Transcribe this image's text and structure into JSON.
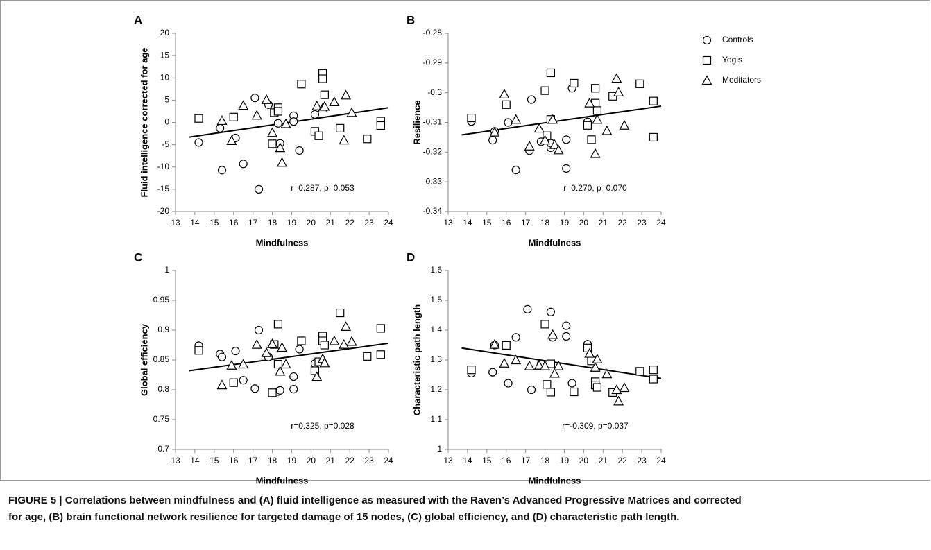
{
  "chart_data": [
    {
      "type": "scatter",
      "panel": "A",
      "ylabel": "Fluid intelligence corrected for age",
      "xlabel": "Mindfulness",
      "annotation": "r=0.287, p=0.053",
      "xlim": [
        13,
        24
      ],
      "xticks": [
        13,
        14,
        15,
        16,
        17,
        18,
        19,
        20,
        21,
        22,
        23,
        24
      ],
      "ylim": [
        -20,
        20
      ],
      "yticks": [
        -20,
        -15,
        -10,
        -5,
        0,
        5,
        10,
        15,
        20
      ],
      "series": [
        {
          "marker": "circle",
          "color": "#000000",
          "x": [
            14.2,
            15.3,
            15.4,
            16.1,
            16.5,
            17.1,
            17.3,
            17.8,
            18.3,
            18.4,
            19.1,
            19.1,
            19.4,
            20.2
          ],
          "y": [
            -4.5,
            -1.3,
            -10.7,
            -3.5,
            -9.3,
            5.5,
            -15,
            4,
            -0.2,
            -4.7,
            1.5,
            0.2,
            -6.3,
            1.8
          ]
        },
        {
          "marker": "square",
          "color": "#000000",
          "x": [
            14.2,
            16.0,
            18.0,
            18.1,
            18.3,
            18.3,
            19.5,
            20.2,
            20.4,
            20.6,
            20.6,
            20.7,
            21.5,
            22.9,
            23.6,
            23.6
          ],
          "y": [
            0.9,
            1.2,
            -4.8,
            2.2,
            3.3,
            2.5,
            8.6,
            -2.0,
            -3,
            11,
            9.8,
            6.2,
            -1.3,
            -3.7,
            0.3,
            -0.7
          ]
        },
        {
          "marker": "triangle",
          "color": "#000000",
          "x": [
            15.4,
            15.9,
            16.5,
            17.2,
            17.7,
            18.0,
            18.4,
            18.5,
            18.7,
            20.3,
            20.6,
            20.7,
            21.2,
            21.7,
            21.8,
            22.1
          ],
          "y": [
            0.4,
            -4.1,
            3.8,
            1.6,
            5.1,
            -2.3,
            -5.7,
            -9,
            -0.3,
            3.7,
            3.2,
            3.6,
            4.6,
            -4,
            6.1,
            2.2
          ]
        }
      ],
      "trendline": {
        "color": "#000000",
        "x": [
          13.7,
          24
        ],
        "y": [
          -3.3,
          3.3
        ]
      }
    },
    {
      "type": "scatter",
      "panel": "B",
      "ylabel": "Resilience",
      "xlabel": "Mindfulness",
      "annotation": "r=0.270, p=0.070",
      "legend": "right",
      "xlim": [
        13,
        24
      ],
      "xticks": [
        13,
        14,
        15,
        16,
        17,
        18,
        19,
        20,
        21,
        22,
        23,
        24
      ],
      "ylim": [
        -0.34,
        -0.28
      ],
      "yticks": [
        -0.34,
        -0.33,
        -0.32,
        -0.31,
        -0.3,
        -0.29,
        -0.28
      ],
      "series": [
        {
          "name": "Controls",
          "marker": "circle",
          "color": "#000000",
          "x": [
            14.2,
            15.3,
            15.4,
            16.1,
            16.5,
            17.2,
            17.3,
            17.8,
            18.3,
            18.3,
            19.1,
            19.1,
            19.4,
            20.2
          ],
          "y": [
            -0.3097,
            -0.316,
            -0.313,
            -0.31,
            -0.326,
            -0.3195,
            -0.3023,
            -0.3165,
            -0.3185,
            -0.317,
            -0.3255,
            -0.3158,
            -0.2985,
            -0.3098
          ]
        },
        {
          "name": "Yogis",
          "marker": "square",
          "color": "#000000",
          "x": [
            14.2,
            16.0,
            18.0,
            18.1,
            18.3,
            18.3,
            19.5,
            20.2,
            20.4,
            20.6,
            20.6,
            20.7,
            21.5,
            22.9,
            23.6,
            23.6
          ],
          "y": [
            -0.3085,
            -0.304,
            -0.2993,
            -0.3145,
            -0.2933,
            -0.309,
            -0.2968,
            -0.311,
            -0.3158,
            -0.2985,
            -0.3035,
            -0.306,
            -0.3012,
            -0.297,
            -0.3028,
            -0.315
          ]
        },
        {
          "name": "Meditators",
          "marker": "triangle",
          "color": "#000000",
          "x": [
            15.4,
            15.9,
            16.5,
            17.2,
            17.7,
            18.0,
            18.4,
            18.5,
            18.7,
            20.3,
            20.6,
            20.7,
            21.2,
            21.7,
            21.8,
            22.1
          ],
          "y": [
            -0.3133,
            -0.3005,
            -0.309,
            -0.318,
            -0.312,
            -0.316,
            -0.309,
            -0.3175,
            -0.3193,
            -0.3035,
            -0.3205,
            -0.309,
            -0.3128,
            -0.2952,
            -0.2998,
            -0.311
          ]
        }
      ],
      "trendline": {
        "color": "#000000",
        "x": [
          13.7,
          24
        ],
        "y": [
          -0.3142,
          -0.3045
        ]
      }
    },
    {
      "type": "scatter",
      "panel": "C",
      "ylabel": "Global efficiency",
      "xlabel": "Mindfulness",
      "annotation": "r=0.325, p=0.028",
      "xlim": [
        13,
        24
      ],
      "xticks": [
        13,
        14,
        15,
        16,
        17,
        18,
        19,
        20,
        21,
        22,
        23,
        24
      ],
      "ylim": [
        0.7,
        1
      ],
      "yticks": [
        0.7,
        0.75,
        0.8,
        0.85,
        0.9,
        0.95,
        1
      ],
      "series": [
        {
          "marker": "circle",
          "color": "#000000",
          "x": [
            14.2,
            15.3,
            15.4,
            16.1,
            16.5,
            17.1,
            17.3,
            17.8,
            18.3,
            18.4,
            19.1,
            19.1,
            19.4,
            20.2
          ],
          "y": [
            0.874,
            0.86,
            0.855,
            0.865,
            0.816,
            0.802,
            0.9,
            0.855,
            0.797,
            0.799,
            0.822,
            0.801,
            0.868,
            0.844
          ]
        },
        {
          "marker": "square",
          "color": "#000000",
          "x": [
            14.2,
            16.0,
            18.0,
            18.1,
            18.3,
            18.3,
            19.5,
            20.2,
            20.4,
            20.6,
            20.6,
            20.7,
            21.5,
            22.9,
            23.6,
            23.6
          ],
          "y": [
            0.866,
            0.812,
            0.795,
            0.876,
            0.91,
            0.843,
            0.882,
            0.832,
            0.847,
            0.89,
            0.882,
            0.875,
            0.929,
            0.856,
            0.903,
            0.859
          ]
        },
        {
          "marker": "triangle",
          "color": "#000000",
          "x": [
            15.4,
            15.9,
            16.5,
            17.2,
            17.7,
            18.0,
            18.4,
            18.5,
            18.7,
            20.3,
            20.6,
            20.7,
            21.2,
            21.7,
            21.8,
            22.1
          ],
          "y": [
            0.808,
            0.841,
            0.843,
            0.876,
            0.862,
            0.877,
            0.831,
            0.871,
            0.843,
            0.822,
            0.852,
            0.845,
            0.882,
            0.876,
            0.906,
            0.881
          ]
        }
      ],
      "trendline": {
        "color": "#000000",
        "x": [
          13.7,
          24
        ],
        "y": [
          0.832,
          0.878
        ]
      }
    },
    {
      "type": "scatter",
      "panel": "D",
      "ylabel": "Characteristic path length",
      "xlabel": "Mindfulness",
      "annotation": "r=-0.309, p=0.037",
      "xlim": [
        13,
        24
      ],
      "xticks": [
        13,
        14,
        15,
        16,
        17,
        18,
        19,
        20,
        21,
        22,
        23,
        24
      ],
      "ylim": [
        1,
        1.6
      ],
      "yticks": [
        1,
        1.1,
        1.2,
        1.3,
        1.4,
        1.5,
        1.6
      ],
      "series": [
        {
          "marker": "circle",
          "color": "#000000",
          "x": [
            14.2,
            15.3,
            15.4,
            16.1,
            16.5,
            17.1,
            17.3,
            17.8,
            18.3,
            18.4,
            19.1,
            19.1,
            19.4,
            20.2
          ],
          "y": [
            1.256,
            1.259,
            1.35,
            1.222,
            1.376,
            1.47,
            1.2,
            1.287,
            1.461,
            1.376,
            1.415,
            1.379,
            1.222,
            1.353
          ]
        },
        {
          "marker": "square",
          "color": "#000000",
          "x": [
            14.2,
            16.0,
            18.0,
            18.1,
            18.3,
            18.3,
            19.5,
            20.2,
            20.4,
            20.6,
            20.6,
            20.7,
            21.5,
            22.9,
            23.6,
            23.6
          ],
          "y": [
            1.267,
            1.349,
            1.42,
            1.218,
            1.192,
            1.287,
            1.193,
            1.34,
            1.297,
            1.227,
            1.216,
            1.208,
            1.191,
            1.262,
            1.267,
            1.236
          ]
        },
        {
          "marker": "triangle",
          "color": "#000000",
          "x": [
            15.4,
            15.9,
            16.5,
            17.2,
            17.7,
            18.0,
            18.4,
            18.5,
            18.7,
            20.3,
            20.6,
            20.7,
            21.2,
            21.7,
            21.8,
            22.1
          ],
          "y": [
            1.352,
            1.289,
            1.3,
            1.28,
            1.282,
            1.28,
            1.385,
            1.255,
            1.28,
            1.322,
            1.275,
            1.303,
            1.253,
            1.2,
            1.162,
            1.207
          ]
        }
      ],
      "trendline": {
        "color": "#000000",
        "x": [
          13.7,
          24
        ],
        "y": [
          1.34,
          1.238
        ]
      }
    }
  ],
  "caption": {
    "line1": "FIGURE 5 | Correlations between mindfulness and (A) fluid intelligence as measured with the Raven’s Advanced Progressive Matrices and corrected",
    "line2": "for age, (B) brain functional network resilience for targeted damage of 15 nodes, (C) global efficiency, and (D) characteristic path length."
  }
}
